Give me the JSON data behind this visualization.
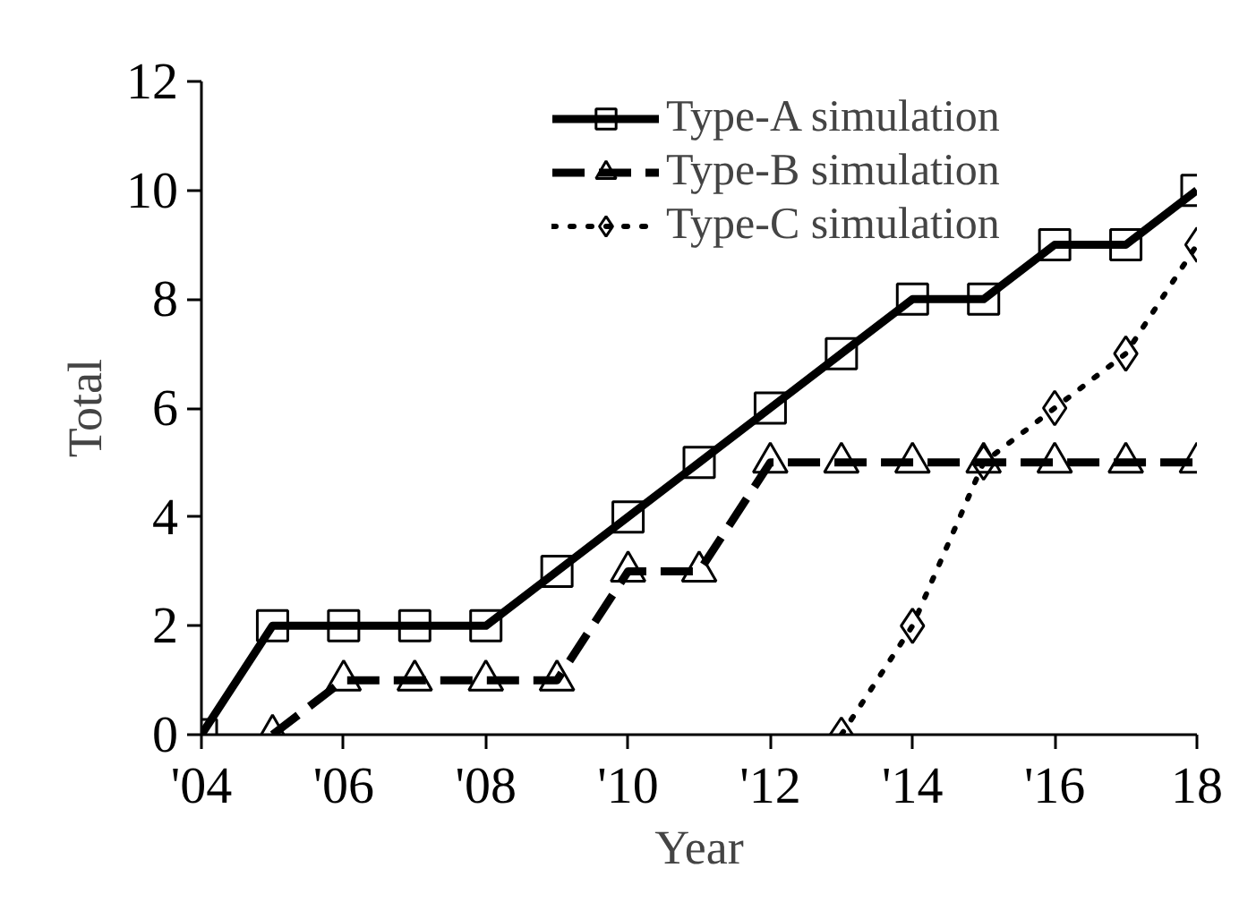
{
  "chart_data": {
    "type": "line",
    "xlabel": "Year",
    "ylabel": "Total",
    "x": [
      2004,
      2005,
      2006,
      2007,
      2008,
      2009,
      2010,
      2011,
      2012,
      2013,
      2014,
      2015,
      2016,
      2017,
      2018
    ],
    "series": [
      {
        "name": "Type-A simulation",
        "color": "#000000",
        "marker": "square",
        "line_style": "solid",
        "values": [
          0,
          2,
          2,
          2,
          2,
          3,
          4,
          5,
          6,
          7,
          8,
          8,
          9,
          9,
          10
        ]
      },
      {
        "name": "Type-B simulation",
        "color": "#000000",
        "marker": "triangle",
        "line_style": "dashed",
        "values": [
          null,
          0,
          1,
          1,
          1,
          1,
          3,
          3,
          5,
          5,
          5,
          5,
          5,
          5,
          5
        ]
      },
      {
        "name": "Type-C simulation",
        "color": "#000000",
        "marker": "diamond",
        "line_style": "dotted",
        "values": [
          null,
          null,
          null,
          null,
          null,
          null,
          null,
          null,
          null,
          0,
          2,
          5,
          6,
          7,
          9
        ]
      }
    ],
    "xlim": [
      2004,
      2018
    ],
    "xticks": [
      {
        "value": 2004,
        "label": "'04"
      },
      {
        "value": 2006,
        "label": "'06"
      },
      {
        "value": 2008,
        "label": "'08"
      },
      {
        "value": 2010,
        "label": "'10"
      },
      {
        "value": 2012,
        "label": "'12"
      },
      {
        "value": 2014,
        "label": "'14"
      },
      {
        "value": 2016,
        "label": "'16"
      },
      {
        "value": 2018,
        "label": "18"
      }
    ],
    "ylim": [
      0,
      12
    ],
    "yticks": [
      0,
      2,
      4,
      6,
      8,
      10,
      12
    ],
    "grid": false,
    "legend": "top right"
  }
}
